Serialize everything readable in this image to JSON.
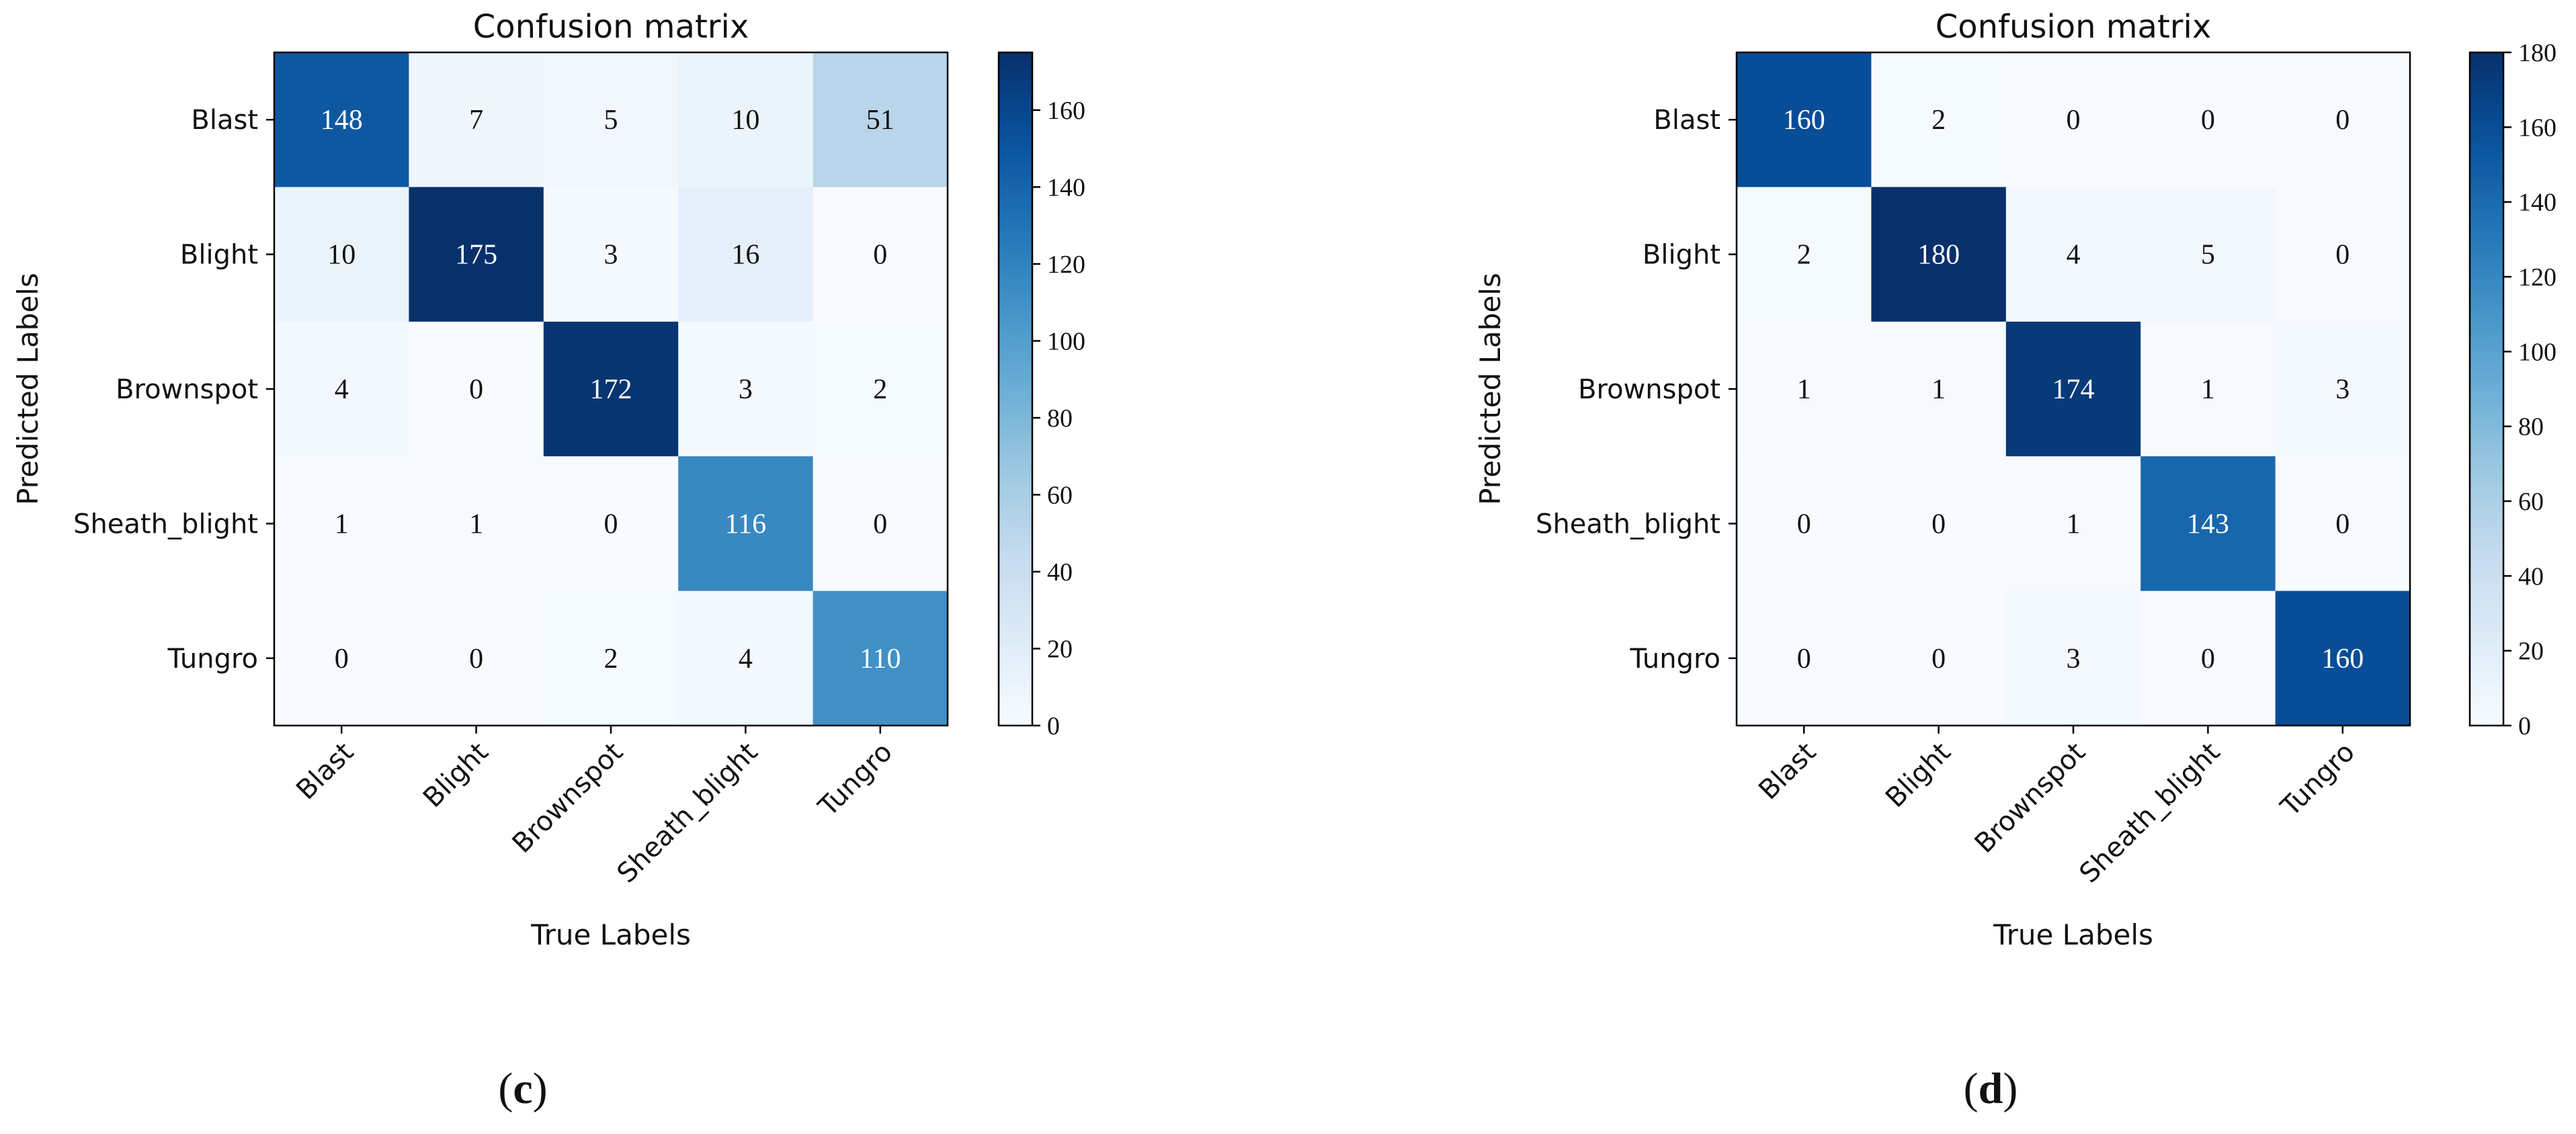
{
  "chart_data": [
    {
      "type": "heatmap",
      "panel_label": "c",
      "title": "Confusion matrix",
      "xlabel": "True Labels",
      "ylabel": "Predicted Labels",
      "categories": [
        "Blast",
        "Blight",
        "Brownspot",
        "Sheath_blight",
        "Tungro"
      ],
      "matrix": [
        [
          148,
          7,
          5,
          10,
          51
        ],
        [
          10,
          175,
          3,
          16,
          0
        ],
        [
          4,
          0,
          172,
          3,
          2
        ],
        [
          1,
          1,
          0,
          116,
          0
        ],
        [
          0,
          0,
          2,
          4,
          110
        ]
      ],
      "colorbar": {
        "min": 0,
        "max": 175,
        "ticks": [
          0,
          20,
          40,
          60,
          80,
          100,
          120,
          140,
          160
        ]
      },
      "colormap": "Blues"
    },
    {
      "type": "heatmap",
      "panel_label": "d",
      "title": "Confusion matrix",
      "xlabel": "True Labels",
      "ylabel": "Predicted Labels",
      "categories": [
        "Blast",
        "Blight",
        "Brownspot",
        "Sheath_blight",
        "Tungro"
      ],
      "matrix": [
        [
          160,
          2,
          0,
          0,
          0
        ],
        [
          2,
          180,
          4,
          5,
          0
        ],
        [
          1,
          1,
          174,
          1,
          3
        ],
        [
          0,
          0,
          1,
          143,
          0
        ],
        [
          0,
          0,
          3,
          0,
          160
        ]
      ],
      "colorbar": {
        "min": 0,
        "max": 180,
        "ticks": [
          0,
          20,
          40,
          60,
          80,
          100,
          120,
          140,
          160,
          180
        ]
      },
      "colormap": "Blues"
    }
  ]
}
